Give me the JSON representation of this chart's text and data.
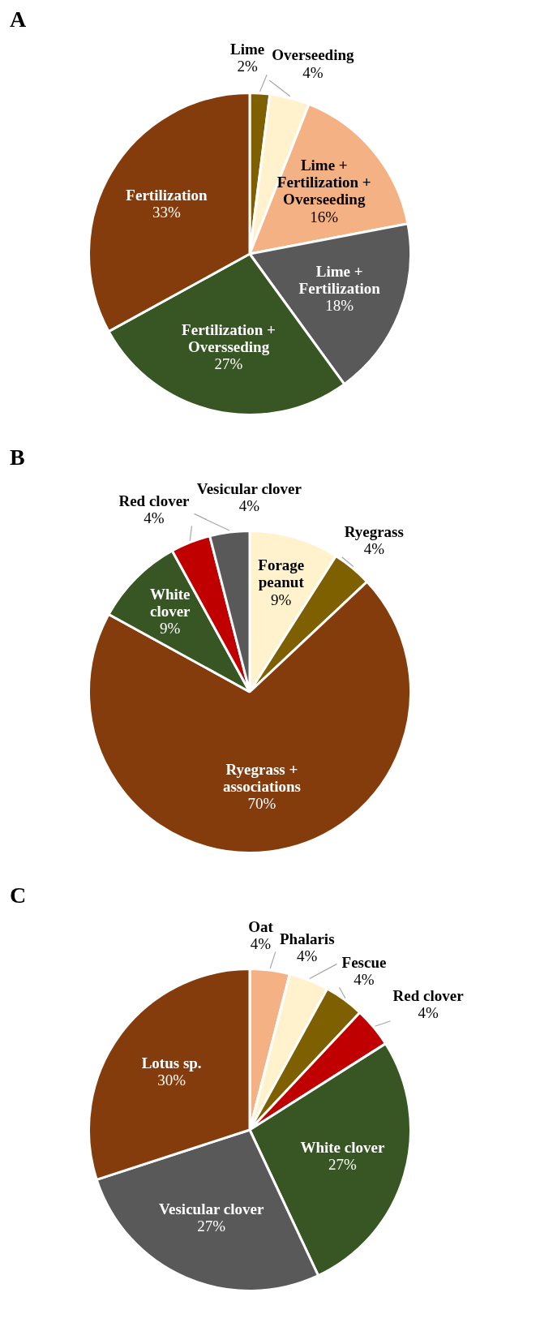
{
  "chart_data": [
    {
      "type": "pie",
      "title": "A",
      "categories": [
        "Lime",
        "Overseeding",
        "Lime + Fertilization + Overseeding",
        "Lime + Fertilization",
        "Fertilization + Oversseding",
        "Fertilization"
      ],
      "values": [
        2,
        4,
        16,
        18,
        27,
        33
      ],
      "value_labels": [
        "2%",
        "4%",
        "16%",
        "18%",
        "27%",
        "33%"
      ],
      "colors": [
        "#7f6000",
        "#fff2cc",
        "#f4b183",
        "#595959",
        "#375623",
        "#843c0c"
      ],
      "legend": false
    },
    {
      "type": "pie",
      "title": "B",
      "categories": [
        "Forage peanut",
        "Ryegrass",
        "Ryegrass + associations",
        "White clover",
        "Red clover",
        "Vesicular clover"
      ],
      "values": [
        9,
        4,
        70,
        9,
        4,
        4
      ],
      "value_labels": [
        "9%",
        "4%",
        "70%",
        "9%",
        "4%",
        "4%"
      ],
      "colors": [
        "#fff2cc",
        "#7f6000",
        "#843c0c",
        "#375623",
        "#c00000",
        "#595959"
      ],
      "legend": false
    },
    {
      "type": "pie",
      "title": "C",
      "categories": [
        "Oat",
        "Phalaris",
        "Fescue",
        "Red clover",
        "White clover",
        "Vesicular clover",
        "Lotus sp."
      ],
      "values": [
        4,
        4,
        4,
        4,
        27,
        27,
        30
      ],
      "value_labels": [
        "4%",
        "4%",
        "4%",
        "4%",
        "27%",
        "27%",
        "30%"
      ],
      "colors": [
        "#f4b183",
        "#fff2cc",
        "#7f6000",
        "#c00000",
        "#375623",
        "#595959",
        "#843c0c"
      ],
      "legend": false
    }
  ]
}
